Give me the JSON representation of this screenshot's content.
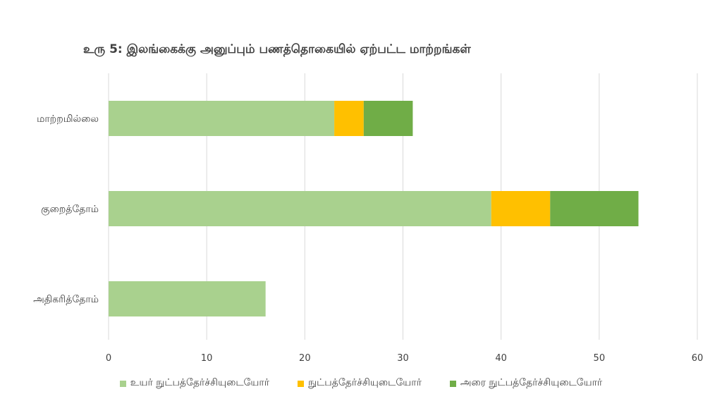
{
  "chart_data": {
    "type": "bar",
    "orientation": "horizontal",
    "stacked": true,
    "title": "உரு 5: இலங்கைக்கு அனுப்பும் பணத்தொகையில் ஏற்பட்ட மாற்றங்கள்",
    "categories": [
      "மாற்றமில்லை",
      "குறைத்தோம்",
      "அதிகரித்தோம்"
    ],
    "series": [
      {
        "name": "உயர் நுட்பத்தேர்ச்சியுடையோர்",
        "color": "#A9D18E",
        "values": [
          23,
          39,
          16
        ]
      },
      {
        "name": "நுட்பத்தேர்ச்சியுடையோர்",
        "color": "#FFC000",
        "values": [
          3,
          6,
          0
        ]
      },
      {
        "name": "அரை நுட்பத்தேர்ச்சியுடையோர்",
        "color": "#70AD47",
        "values": [
          5,
          9,
          0
        ]
      }
    ],
    "xlim": [
      0,
      60
    ],
    "xticks": [
      "0",
      "10",
      "20",
      "30",
      "40",
      "50",
      "60"
    ],
    "grid": true,
    "legend_position": "bottom"
  }
}
